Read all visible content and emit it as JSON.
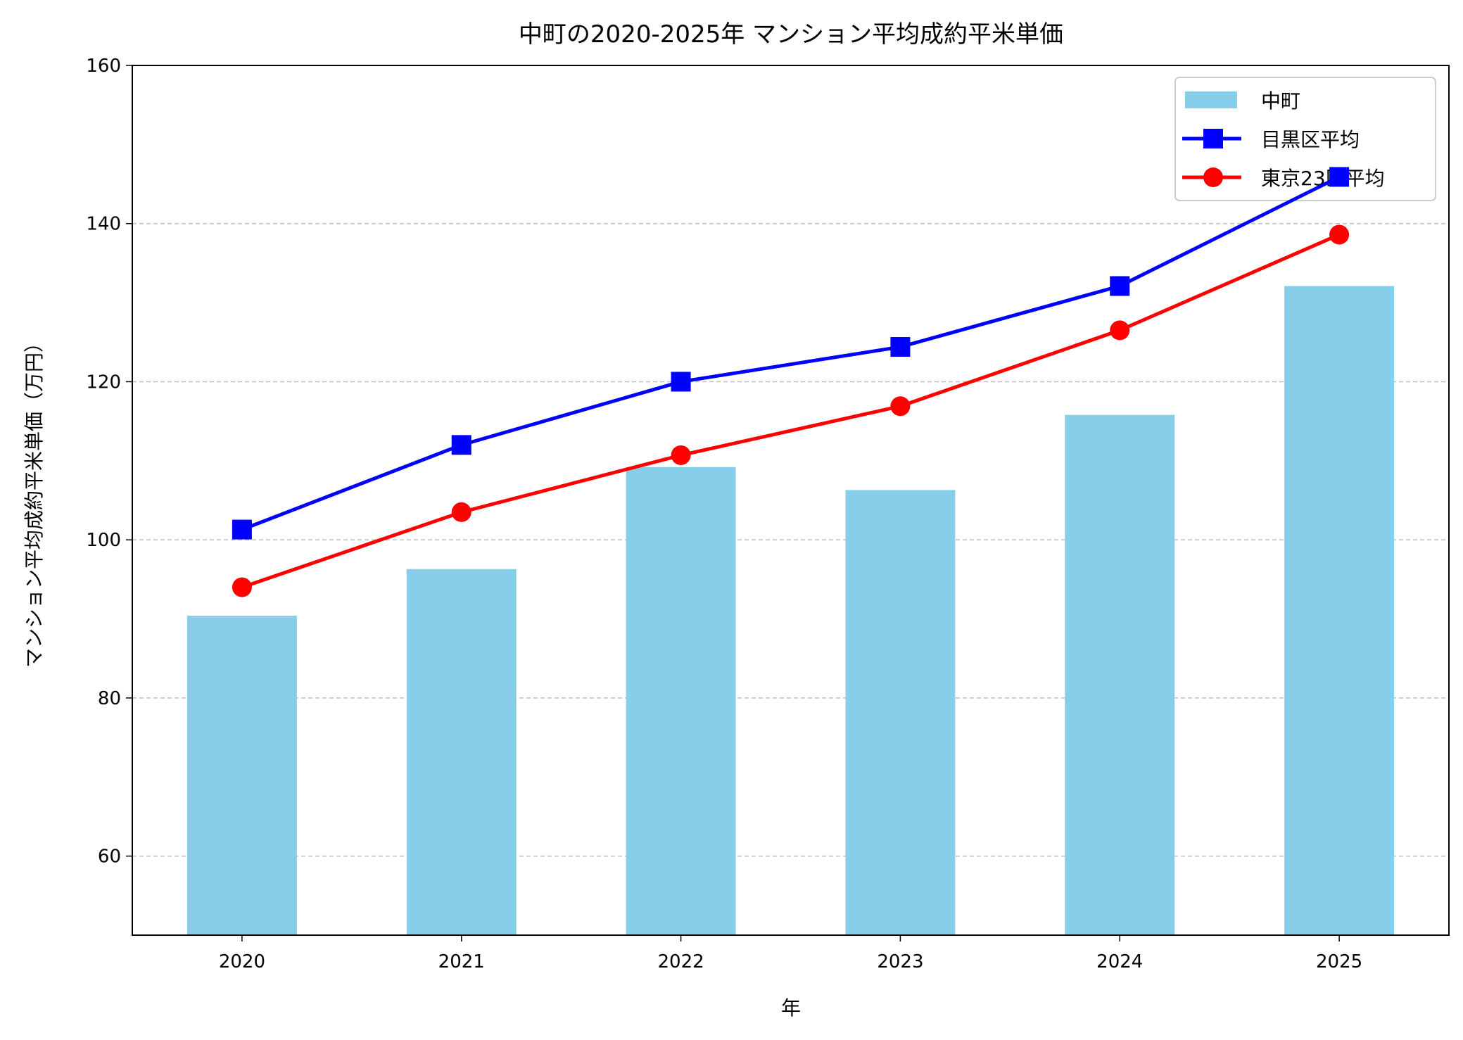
{
  "chart_data": {
    "type": "bar",
    "title": "中町の2020-2025年 マンション平均成約平米単価",
    "xlabel": "年",
    "ylabel": "マンション平均成約平米単価（万円）",
    "categories": [
      "2020",
      "2021",
      "2022",
      "2023",
      "2024",
      "2025"
    ],
    "ylim": [
      50,
      160
    ],
    "yticks": [
      60,
      80,
      100,
      120,
      140,
      160
    ],
    "grid": "y-dashed",
    "legend_position": "top-right",
    "series": [
      {
        "name": "中町",
        "kind": "bar",
        "color": "#87CEEB",
        "values": [
          90.4,
          96.3,
          109.2,
          106.3,
          115.8,
          132.1
        ]
      },
      {
        "name": "目黒区平均",
        "kind": "line",
        "marker": "square",
        "color": "#0000FF",
        "values": [
          101.3,
          112.0,
          120.0,
          124.4,
          132.1,
          145.9
        ]
      },
      {
        "name": "東京23区平均",
        "kind": "line",
        "marker": "circle",
        "color": "#FF0000",
        "values": [
          94.0,
          103.5,
          110.7,
          116.9,
          126.5,
          138.6
        ]
      }
    ]
  }
}
